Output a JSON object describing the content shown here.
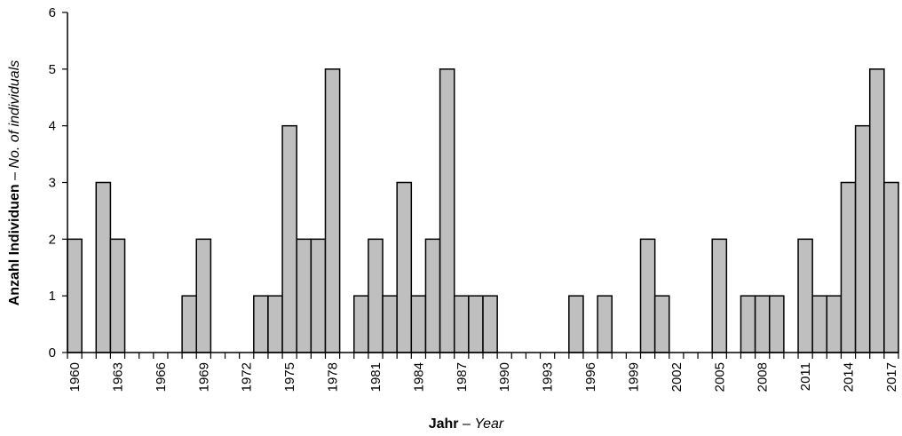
{
  "chart_data": {
    "type": "bar",
    "x": [
      1960,
      1961,
      1962,
      1963,
      1964,
      1965,
      1966,
      1967,
      1968,
      1969,
      1970,
      1971,
      1972,
      1973,
      1974,
      1975,
      1976,
      1977,
      1978,
      1979,
      1980,
      1981,
      1982,
      1983,
      1984,
      1985,
      1986,
      1987,
      1988,
      1989,
      1990,
      1991,
      1992,
      1993,
      1994,
      1995,
      1996,
      1997,
      1998,
      1999,
      2000,
      2001,
      2002,
      2003,
      2004,
      2005,
      2006,
      2007,
      2008,
      2009,
      2010,
      2011,
      2012,
      2013,
      2014,
      2015,
      2016,
      2017
    ],
    "values": [
      2,
      0,
      3,
      2,
      0,
      0,
      0,
      0,
      1,
      2,
      0,
      0,
      0,
      1,
      1,
      4,
      2,
      2,
      5,
      0,
      1,
      2,
      1,
      3,
      1,
      2,
      5,
      1,
      1,
      1,
      0,
      0,
      0,
      0,
      0,
      1,
      0,
      1,
      0,
      0,
      2,
      1,
      0,
      0,
      0,
      2,
      0,
      1,
      1,
      1,
      0,
      2,
      1,
      1,
      3,
      4,
      5,
      3
    ],
    "x_tick_labels": [
      "1960",
      "1963",
      "1966",
      "1969",
      "1972",
      "1975",
      "1978",
      "1981",
      "1984",
      "1987",
      "1990",
      "1993",
      "1996",
      "1999",
      "2002",
      "2005",
      "2008",
      "2011",
      "2014",
      "2017"
    ],
    "y_ticks": [
      "0",
      "1",
      "2",
      "3",
      "4",
      "5",
      "6"
    ],
    "ylim": [
      0,
      6
    ],
    "xlabel_bold": "Jahr",
    "xlabel_sep": " – ",
    "xlabel_italic": "Year",
    "ylabel_bold": "Anzahl Individuen",
    "ylabel_sep": " – ",
    "ylabel_italic": "No. of individuals",
    "bar_color": "#bfbfbf",
    "grid": false
  }
}
